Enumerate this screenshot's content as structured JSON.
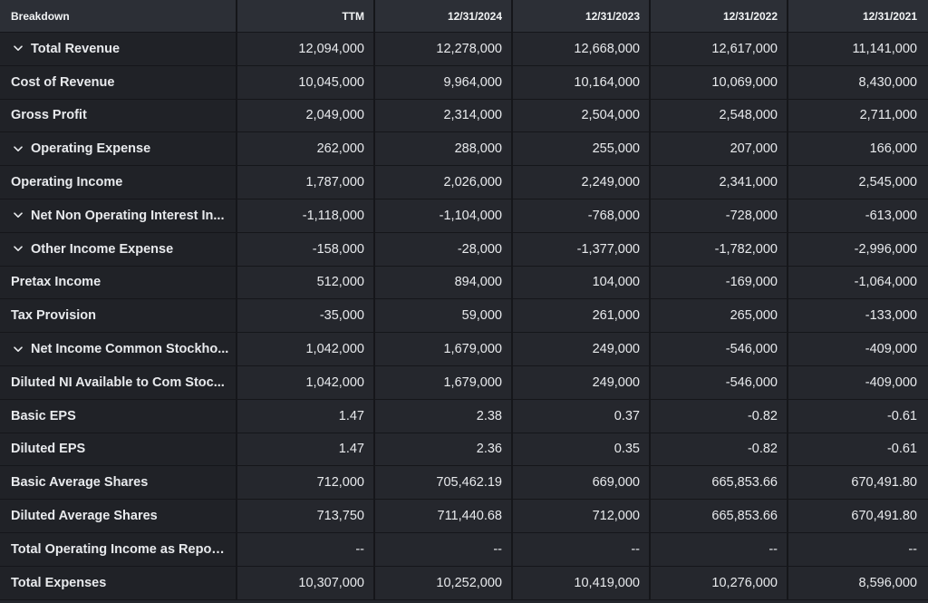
{
  "columns": [
    "Breakdown",
    "TTM",
    "12/31/2024",
    "12/31/2023",
    "12/31/2022",
    "12/31/2021"
  ],
  "rows": [
    {
      "label": "Total Revenue",
      "expandable": true,
      "values": [
        "12,094,000",
        "12,278,000",
        "12,668,000",
        "12,617,000",
        "11,141,000"
      ]
    },
    {
      "label": "Cost of Revenue",
      "expandable": false,
      "values": [
        "10,045,000",
        "9,964,000",
        "10,164,000",
        "10,069,000",
        "8,430,000"
      ]
    },
    {
      "label": "Gross Profit",
      "expandable": false,
      "values": [
        "2,049,000",
        "2,314,000",
        "2,504,000",
        "2,548,000",
        "2,711,000"
      ]
    },
    {
      "label": "Operating Expense",
      "expandable": true,
      "values": [
        "262,000",
        "288,000",
        "255,000",
        "207,000",
        "166,000"
      ]
    },
    {
      "label": "Operating Income",
      "expandable": false,
      "values": [
        "1,787,000",
        "2,026,000",
        "2,249,000",
        "2,341,000",
        "2,545,000"
      ]
    },
    {
      "label": "Net Non Operating Interest In...",
      "expandable": true,
      "values": [
        "-1,118,000",
        "-1,104,000",
        "-768,000",
        "-728,000",
        "-613,000"
      ]
    },
    {
      "label": "Other Income Expense",
      "expandable": true,
      "values": [
        "-158,000",
        "-28,000",
        "-1,377,000",
        "-1,782,000",
        "-2,996,000"
      ]
    },
    {
      "label": "Pretax Income",
      "expandable": false,
      "values": [
        "512,000",
        "894,000",
        "104,000",
        "-169,000",
        "-1,064,000"
      ]
    },
    {
      "label": "Tax Provision",
      "expandable": false,
      "values": [
        "-35,000",
        "59,000",
        "261,000",
        "265,000",
        "-133,000"
      ]
    },
    {
      "label": "Net Income Common Stockho...",
      "expandable": true,
      "values": [
        "1,042,000",
        "1,679,000",
        "249,000",
        "-546,000",
        "-409,000"
      ]
    },
    {
      "label": "Diluted NI Available to Com Stoc...",
      "expandable": false,
      "values": [
        "1,042,000",
        "1,679,000",
        "249,000",
        "-546,000",
        "-409,000"
      ]
    },
    {
      "label": "Basic EPS",
      "expandable": false,
      "values": [
        "1.47",
        "2.38",
        "0.37",
        "-0.82",
        "-0.61"
      ]
    },
    {
      "label": "Diluted EPS",
      "expandable": false,
      "values": [
        "1.47",
        "2.36",
        "0.35",
        "-0.82",
        "-0.61"
      ]
    },
    {
      "label": "Basic Average Shares",
      "expandable": false,
      "values": [
        "712,000",
        "705,462.19",
        "669,000",
        "665,853.66",
        "670,491.80"
      ]
    },
    {
      "label": "Diluted Average Shares",
      "expandable": false,
      "values": [
        "713,750",
        "711,440.68",
        "712,000",
        "665,853.66",
        "670,491.80"
      ]
    },
    {
      "label": "Total Operating Income as Repor...",
      "expandable": false,
      "values": [
        "--",
        "--",
        "--",
        "--",
        "--"
      ]
    },
    {
      "label": "Total Expenses",
      "expandable": false,
      "values": [
        "10,307,000",
        "10,252,000",
        "10,419,000",
        "10,276,000",
        "8,596,000"
      ]
    }
  ],
  "icons": {
    "expand": "chevron-down-icon"
  },
  "colors": {
    "background": "#24262c",
    "header": "#2c2f36",
    "text": "#e8eaed",
    "divider": "#15161a"
  }
}
